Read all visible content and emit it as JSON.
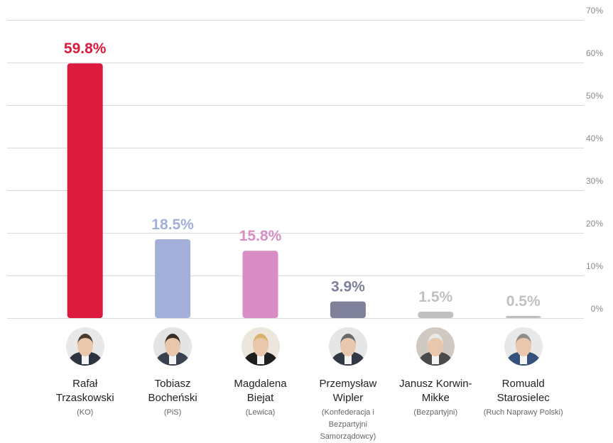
{
  "chart_data": {
    "type": "bar",
    "categories": [
      "Rafał Trzaskowski",
      "Tobiasz Bocheński",
      "Magdalena Biejat",
      "Przemysław Wipler",
      "Janusz Korwin-Mikke",
      "Romuald Starosielec"
    ],
    "values": [
      59.8,
      18.5,
      15.8,
      3.9,
      1.5,
      0.5
    ],
    "value_labels": [
      "59.8%",
      "18.5%",
      "15.8%",
      "3.9%",
      "1.5%",
      "0.5%"
    ],
    "colors": [
      "#dc1a3e",
      "#a3afd9",
      "#d88ec4",
      "#7f819a",
      "#c0c0c0",
      "#c0c0c0"
    ],
    "label_colors": [
      "#dc1a3e",
      "#a3afd9",
      "#d88ec4",
      "#7f819a",
      "#c0c0c0",
      "#c0c0c0"
    ],
    "ylim": [
      0,
      70
    ],
    "yticks": [
      0,
      10,
      20,
      30,
      40,
      50,
      60,
      70
    ],
    "ytick_labels": [
      "0%",
      "10%",
      "20%",
      "30%",
      "40%",
      "50%",
      "60%",
      "70%"
    ],
    "grid": true,
    "legend": "none"
  },
  "candidates": [
    {
      "name_line1": "Rafał",
      "name_line2": "Trzaskowski",
      "party": "(KO)",
      "avatar_bg": "#e8e8e8",
      "hair": "#4a3b2f",
      "suit": "#2d3340"
    },
    {
      "name_line1": "Tobiasz",
      "name_line2": "Bocheński",
      "party": "(PiS)",
      "avatar_bg": "#e4e4e4",
      "hair": "#3a2e26",
      "suit": "#3c4150"
    },
    {
      "name_line1": "Magdalena",
      "name_line2": "Biejat",
      "party": "(Lewica)",
      "avatar_bg": "#ece6dc",
      "hair": "#d9b36b",
      "suit": "#1e1e1e"
    },
    {
      "name_line1": "Przemysław",
      "name_line2": "Wipler",
      "party": "(Konfederacja i Bezpartyjni Samorządowcy)",
      "avatar_bg": "#e6e6e6",
      "hair": "#6a6a6a",
      "suit": "#333845"
    },
    {
      "name_line1": "Janusz Korwin-",
      "name_line2": "Mikke",
      "party": "(Bezpartyjni)",
      "avatar_bg": "#cfc9c2",
      "hair": "#e8e8e8",
      "suit": "#4a4a4a"
    },
    {
      "name_line1": "Romuald",
      "name_line2": "Starosielec",
      "party": "(Ruch Naprawy Polski)",
      "avatar_bg": "#e8e8e8",
      "hair": "#8d8d8d",
      "suit": "#35507a"
    }
  ]
}
